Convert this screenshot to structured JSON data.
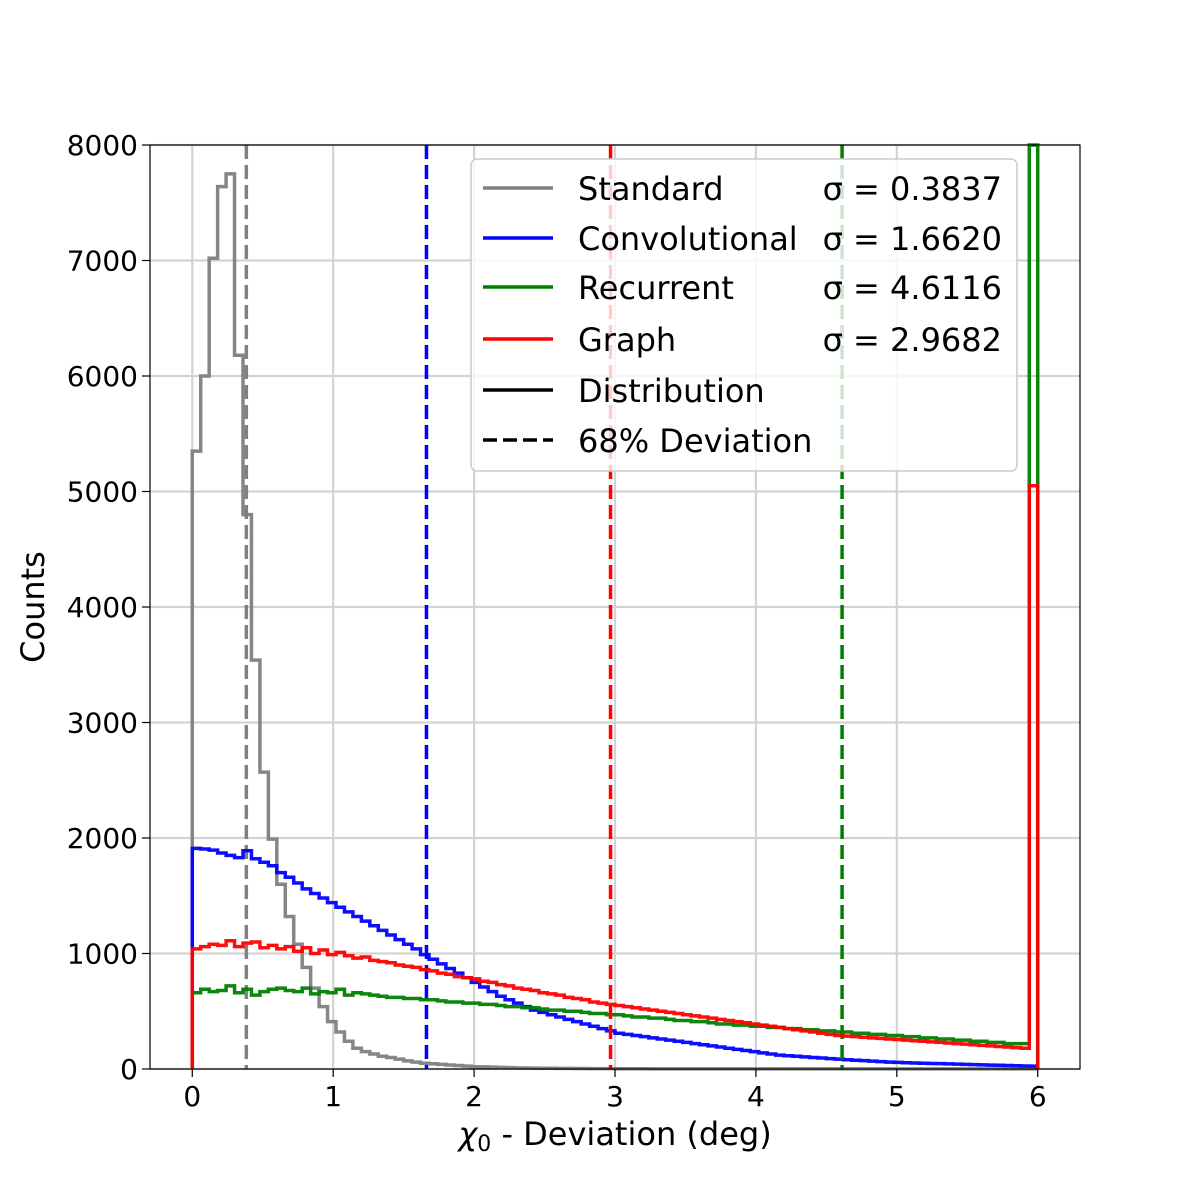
{
  "chart_data": {
    "type": "histogram",
    "xlabel_symbol": "χ",
    "xlabel_sub": "0",
    "xlabel_rest": " - Deviation (deg)",
    "ylabel": "Counts",
    "xlim": [
      -0.3,
      6.3
    ],
    "ylim": [
      0,
      8000
    ],
    "xticks": [
      0,
      1,
      2,
      3,
      4,
      5,
      6
    ],
    "yticks": [
      0,
      1000,
      2000,
      3000,
      4000,
      5000,
      6000,
      7000,
      8000
    ],
    "grid": true,
    "legend_position": "upper-right",
    "bin_width": 0.06,
    "series": [
      {
        "name": "Standard",
        "sigma_label": "σ = 0.3837",
        "color": "#808080",
        "deviation_68": 0.3837,
        "counts": [
          5350,
          6000,
          7020,
          7640,
          7750,
          6180,
          4800,
          3540,
          2570,
          1990,
          1600,
          1320,
          1080,
          880,
          700,
          540,
          410,
          320,
          240,
          180,
          150,
          130,
          110,
          100,
          85,
          70,
          60,
          50,
          45,
          40,
          35,
          30,
          25,
          20,
          18,
          16,
          14,
          12,
          10,
          9,
          8,
          7,
          6,
          5,
          5,
          4,
          4,
          3,
          3,
          3,
          2,
          2,
          2,
          2,
          1,
          1,
          1,
          1,
          1,
          1,
          1,
          1,
          1,
          1,
          1,
          1,
          1,
          1,
          1,
          1,
          1,
          1,
          1,
          1,
          1,
          1,
          1,
          1,
          1,
          1,
          1,
          1,
          1,
          1,
          1,
          1,
          1,
          1,
          1,
          1,
          1,
          1,
          1,
          1,
          1,
          1,
          1,
          1,
          1,
          1
        ]
      },
      {
        "name": "Convolutional",
        "sigma_label": "σ = 1.6620",
        "color": "#0000ff",
        "deviation_68": 1.662,
        "counts": [
          1910,
          1905,
          1895,
          1870,
          1850,
          1830,
          1890,
          1820,
          1790,
          1760,
          1700,
          1660,
          1610,
          1560,
          1520,
          1480,
          1440,
          1400,
          1360,
          1320,
          1280,
          1240,
          1200,
          1160,
          1120,
          1080,
          1040,
          990,
          950,
          910,
          870,
          830,
          790,
          750,
          710,
          670,
          630,
          600,
          570,
          540,
          510,
          490,
          470,
          450,
          430,
          410,
          390,
          370,
          350,
          330,
          310,
          300,
          290,
          280,
          270,
          260,
          250,
          240,
          230,
          220,
          210,
          200,
          190,
          180,
          170,
          160,
          150,
          140,
          130,
          120,
          115,
          110,
          105,
          100,
          95,
          90,
          85,
          80,
          76,
          72,
          68,
          64,
          60,
          57,
          54,
          52,
          50,
          48,
          46,
          44,
          42,
          40,
          38,
          36,
          34,
          32,
          30,
          28,
          26,
          25
        ]
      },
      {
        "name": "Recurrent",
        "sigma_label": "σ = 4.6116",
        "color": "#008000",
        "deviation_68": 4.6116,
        "overflow": 8000,
        "counts": [
          660,
          690,
          670,
          680,
          720,
          660,
          690,
          640,
          670,
          690,
          700,
          680,
          670,
          700,
          650,
          670,
          660,
          690,
          640,
          660,
          650,
          640,
          630,
          620,
          620,
          610,
          610,
          600,
          600,
          590,
          580,
          580,
          570,
          570,
          560,
          560,
          550,
          540,
          540,
          530,
          530,
          520,
          510,
          510,
          500,
          500,
          490,
          480,
          480,
          470,
          470,
          460,
          450,
          450,
          440,
          440,
          430,
          420,
          420,
          410,
          410,
          400,
          390,
          390,
          380,
          380,
          370,
          370,
          360,
          360,
          350,
          350,
          340,
          340,
          330,
          330,
          320,
          320,
          310,
          310,
          300,
          300,
          290,
          290,
          280,
          280,
          270,
          270,
          260,
          260,
          250,
          250,
          240,
          240,
          230,
          230,
          220,
          220,
          220,
          210
        ]
      },
      {
        "name": "Graph",
        "sigma_label": "σ = 2.9682",
        "color": "#ff0000",
        "deviation_68": 2.9682,
        "overflow": 5050,
        "counts": [
          1040,
          1060,
          1080,
          1070,
          1110,
          1060,
          1090,
          1100,
          1050,
          1070,
          1040,
          1060,
          1020,
          1050,
          1000,
          1030,
          990,
          1010,
          980,
          960,
          970,
          940,
          930,
          920,
          900,
          890,
          880,
          860,
          850,
          830,
          820,
          800,
          790,
          780,
          760,
          750,
          730,
          720,
          700,
          690,
          680,
          660,
          650,
          640,
          620,
          610,
          600,
          580,
          570,
          560,
          550,
          540,
          530,
          520,
          510,
          500,
          490,
          480,
          470,
          460,
          450,
          440,
          430,
          420,
          410,
          400,
          390,
          380,
          370,
          360,
          350,
          340,
          330,
          320,
          310,
          300,
          290,
          285,
          280,
          275,
          270,
          265,
          260,
          255,
          250,
          245,
          240,
          235,
          230,
          225,
          220,
          215,
          210,
          205,
          200,
          195,
          190,
          185,
          180,
          175
        ]
      }
    ],
    "legend_styles": [
      {
        "label": "Distribution",
        "dash": "solid",
        "color": "#000000"
      },
      {
        "label": "68% Deviation",
        "dash": "dashed",
        "color": "#000000"
      }
    ]
  }
}
